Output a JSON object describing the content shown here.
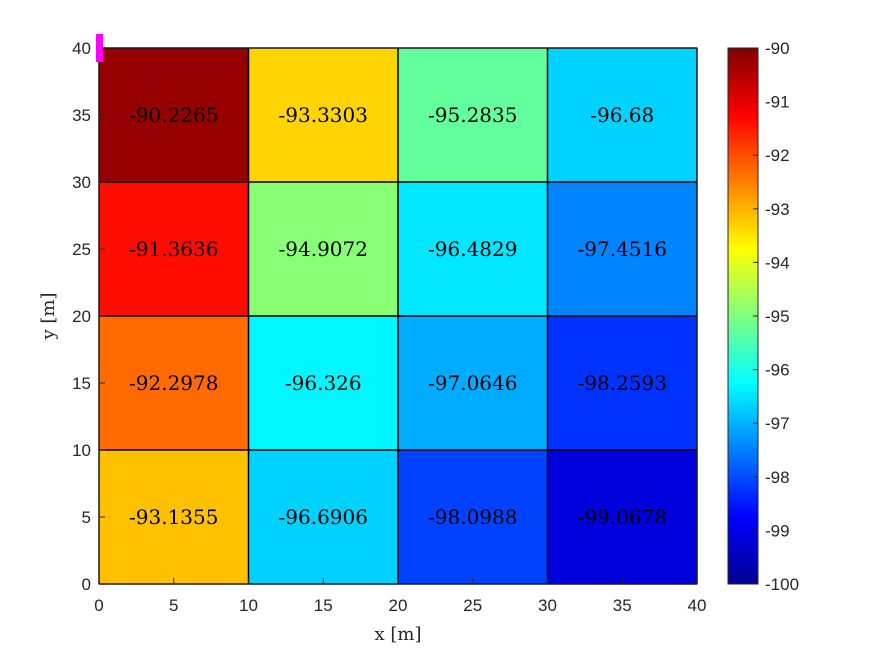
{
  "chart_data": {
    "type": "heatmap",
    "xlabel": "x [m]",
    "ylabel": "y [m]",
    "xlim": [
      0,
      40
    ],
    "ylim": [
      0,
      40
    ],
    "x_ticks": [
      0,
      5,
      10,
      15,
      20,
      25,
      30,
      35,
      40
    ],
    "y_ticks": [
      0,
      5,
      10,
      15,
      20,
      25,
      30,
      35,
      40
    ],
    "x_edges": [
      0,
      10,
      20,
      30,
      40
    ],
    "y_edges": [
      0,
      10,
      20,
      30,
      40
    ],
    "values_top_to_bottom": [
      [
        -90.2265,
        -93.3303,
        -95.2835,
        -96.68
      ],
      [
        -91.3636,
        -94.9072,
        -96.4829,
        -97.4516
      ],
      [
        -92.2978,
        -96.326,
        -97.0646,
        -98.2593
      ],
      [
        -93.1355,
        -96.6906,
        -98.0988,
        -99.0678
      ]
    ],
    "cell_labels_top_to_bottom": [
      [
        "-90.2265",
        "-93.3303",
        "-95.2835",
        "-96.68"
      ],
      [
        "-91.3636",
        "-94.9072",
        "-96.4829",
        "-97.4516"
      ],
      [
        "-92.2978",
        "-96.326",
        "-97.0646",
        "-98.2593"
      ],
      [
        "-93.1355",
        "-96.6906",
        "-98.0988",
        "-99.0678"
      ]
    ],
    "colorbar": {
      "colormap": "jet",
      "range": [
        -100,
        -90
      ],
      "ticks": [
        -90,
        -91,
        -92,
        -93,
        -94,
        -95,
        -96,
        -97,
        -98,
        -99,
        -100
      ]
    },
    "marker": {
      "x": 0,
      "y": 40,
      "color": "#ff00ff"
    },
    "grid": true
  }
}
